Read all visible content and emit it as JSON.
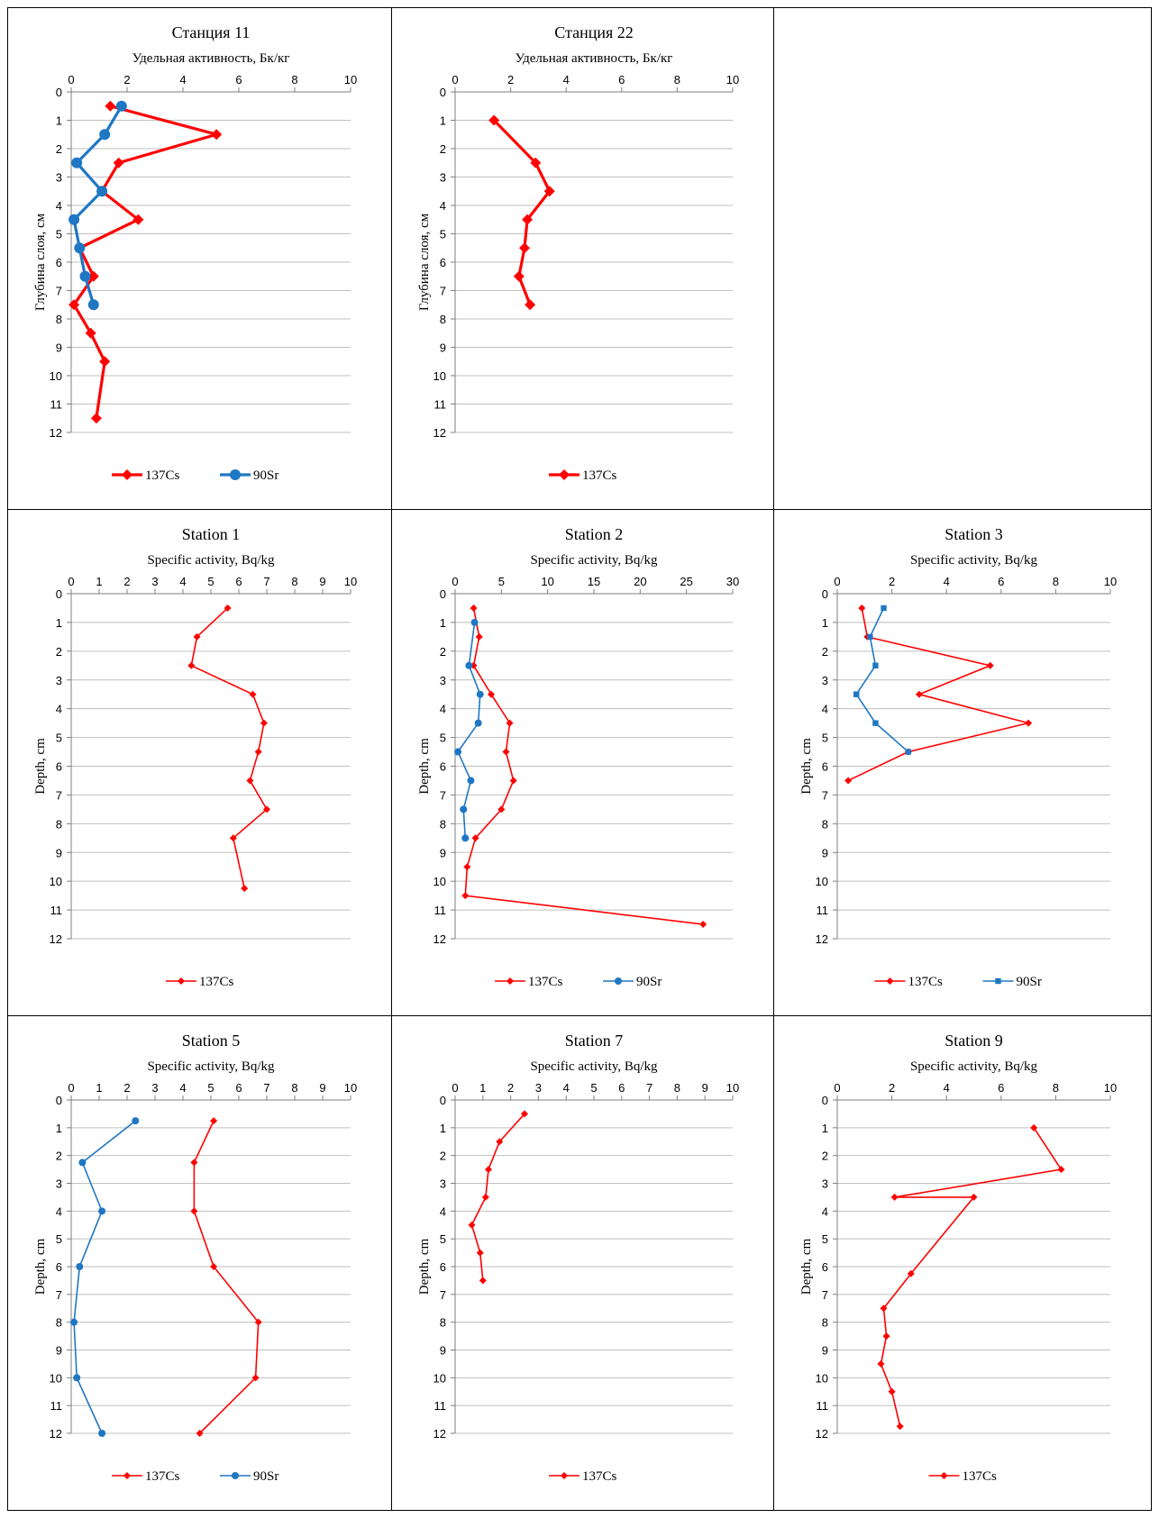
{
  "colors": {
    "cs": "#ff0000",
    "sr": "#1f77c4",
    "grid": "#bfbfbf",
    "axis": "#7f7f7f"
  },
  "chart_data": [
    {
      "type": "line",
      "title": "Станция 11",
      "xlabel": "Удельная активность, Бк/кг",
      "ylabel": "Глубина слоя, см",
      "xlim": [
        0,
        10
      ],
      "xticks": [
        0,
        2,
        4,
        6,
        8,
        10
      ],
      "ylim": [
        0,
        12
      ],
      "yticks": [
        0,
        1,
        2,
        3,
        4,
        5,
        6,
        7,
        8,
        9,
        10,
        11,
        12
      ],
      "y_inverted": true,
      "x_axis_position": "top",
      "grid": "horizontal",
      "legend": "bottom",
      "series": [
        {
          "name": "137Cs",
          "marker": "diamond",
          "style": "bold",
          "color": "#ff0000",
          "points": [
            [
              1.4,
              0.5
            ],
            [
              5.2,
              1.5
            ],
            [
              1.7,
              2.5
            ],
            [
              1.1,
              3.5
            ],
            [
              2.4,
              4.5
            ],
            [
              0.3,
              5.5
            ],
            [
              0.8,
              6.5
            ],
            [
              0.1,
              7.5
            ],
            [
              0.7,
              8.5
            ],
            [
              1.2,
              9.5
            ],
            [
              0.9,
              11.5
            ]
          ]
        },
        {
          "name": "90Sr",
          "marker": "circle",
          "style": "bold",
          "color": "#1f77c4",
          "points": [
            [
              1.8,
              0.5
            ],
            [
              1.2,
              1.5
            ],
            [
              0.2,
              2.5
            ],
            [
              1.1,
              3.5
            ],
            [
              0.1,
              4.5
            ],
            [
              0.3,
              5.5
            ],
            [
              0.5,
              6.5
            ],
            [
              0.8,
              7.5
            ]
          ]
        }
      ]
    },
    {
      "type": "line",
      "title": "Станция 22",
      "xlabel": "Удельная активность, Бк/кг",
      "ylabel": "Глубина слоя, см",
      "xlim": [
        0,
        10
      ],
      "xticks": [
        0,
        2,
        4,
        6,
        8,
        10
      ],
      "ylim": [
        0,
        12
      ],
      "yticks": [
        0,
        1,
        2,
        3,
        4,
        5,
        6,
        7,
        8,
        9,
        10,
        11,
        12
      ],
      "y_inverted": true,
      "x_axis_position": "top",
      "grid": "horizontal",
      "legend": "bottom",
      "series": [
        {
          "name": "137Cs",
          "marker": "diamond",
          "style": "bold",
          "color": "#ff0000",
          "points": [
            [
              1.4,
              1.0
            ],
            [
              2.9,
              2.5
            ],
            [
              3.4,
              3.5
            ],
            [
              2.6,
              4.5
            ],
            [
              2.5,
              5.5
            ],
            [
              2.3,
              6.5
            ],
            [
              2.7,
              7.5
            ]
          ]
        }
      ]
    },
    {
      "type": "line",
      "title": "Station 1",
      "xlabel": "Specific activity, Bq/kg",
      "ylabel": "Depth, cm",
      "xlim": [
        0,
        10
      ],
      "xticks": [
        0,
        1,
        2,
        3,
        4,
        5,
        6,
        7,
        8,
        9,
        10
      ],
      "ylim": [
        0,
        12
      ],
      "yticks": [
        0,
        1,
        2,
        3,
        4,
        5,
        6,
        7,
        8,
        9,
        10,
        11,
        12
      ],
      "y_inverted": true,
      "x_axis_position": "top",
      "grid": "horizontal",
      "legend": "bottom",
      "series": [
        {
          "name": "137Cs",
          "marker": "diamond",
          "style": "thin",
          "color": "#ff0000",
          "points": [
            [
              5.6,
              0.5
            ],
            [
              4.5,
              1.5
            ],
            [
              4.3,
              2.5
            ],
            [
              6.5,
              3.5
            ],
            [
              6.9,
              4.5
            ],
            [
              6.7,
              5.5
            ],
            [
              6.4,
              6.5
            ],
            [
              7.0,
              7.5
            ],
            [
              5.8,
              8.5
            ],
            [
              6.2,
              10.25
            ]
          ]
        }
      ]
    },
    {
      "type": "line",
      "title": "Station 2",
      "xlabel": "Specific activity, Bq/kg",
      "ylabel": "Depth, cm",
      "xlim": [
        0,
        30
      ],
      "xticks": [
        0,
        5,
        10,
        15,
        20,
        25,
        30
      ],
      "ylim": [
        0,
        12
      ],
      "yticks": [
        0,
        1,
        2,
        3,
        4,
        5,
        6,
        7,
        8,
        9,
        10,
        11,
        12
      ],
      "y_inverted": true,
      "x_axis_position": "top",
      "grid": "horizontal",
      "legend": "bottom",
      "series": [
        {
          "name": "137Cs",
          "marker": "diamond",
          "style": "thin",
          "color": "#ff0000",
          "points": [
            [
              2.0,
              0.5
            ],
            [
              2.6,
              1.5
            ],
            [
              2.0,
              2.5
            ],
            [
              3.9,
              3.5
            ],
            [
              5.9,
              4.5
            ],
            [
              5.5,
              5.5
            ],
            [
              6.3,
              6.5
            ],
            [
              5.0,
              7.5
            ],
            [
              2.2,
              8.5
            ],
            [
              1.3,
              9.5
            ],
            [
              1.1,
              10.5
            ],
            [
              26.8,
              11.5
            ]
          ]
        },
        {
          "name": "90Sr",
          "marker": "circle",
          "style": "thin",
          "color": "#1f77c4",
          "points": [
            [
              2.1,
              1.0
            ],
            [
              1.5,
              2.5
            ],
            [
              2.7,
              3.5
            ],
            [
              2.5,
              4.5
            ],
            [
              0.3,
              5.5
            ],
            [
              1.7,
              6.5
            ],
            [
              0.9,
              7.5
            ],
            [
              1.1,
              8.5
            ]
          ]
        }
      ]
    },
    {
      "type": "line",
      "title": "Station 3",
      "xlabel": "Specific activity, Bq/kg",
      "ylabel": "Depth, cm",
      "xlim": [
        0,
        10
      ],
      "xticks": [
        0,
        2,
        4,
        6,
        8,
        10
      ],
      "ylim": [
        0,
        12
      ],
      "yticks": [
        0,
        1,
        2,
        3,
        4,
        5,
        6,
        7,
        8,
        9,
        10,
        11,
        12
      ],
      "y_inverted": true,
      "x_axis_position": "top",
      "grid": "horizontal",
      "legend": "bottom",
      "series": [
        {
          "name": "137Cs",
          "marker": "diamond",
          "style": "thin",
          "color": "#ff0000",
          "points": [
            [
              0.9,
              0.5
            ],
            [
              1.1,
              1.5
            ],
            [
              5.6,
              2.5
            ],
            [
              3.0,
              3.5
            ],
            [
              7.0,
              4.5
            ],
            [
              2.6,
              5.5
            ],
            [
              0.4,
              6.5
            ]
          ]
        },
        {
          "name": "90Sr",
          "marker": "square",
          "style": "thin",
          "color": "#1f77c4",
          "points": [
            [
              1.7,
              0.5
            ],
            [
              1.2,
              1.5
            ],
            [
              1.4,
              2.5
            ],
            [
              0.7,
              3.5
            ],
            [
              1.4,
              4.5
            ],
            [
              2.6,
              5.5
            ]
          ]
        }
      ]
    },
    {
      "type": "line",
      "title": "Station 5",
      "xlabel": "Specific activity, Bq/kg",
      "ylabel": "Depth, cm",
      "xlim": [
        0,
        10
      ],
      "xticks": [
        0,
        1,
        2,
        3,
        4,
        5,
        6,
        7,
        8,
        9,
        10
      ],
      "ylim": [
        0,
        12
      ],
      "yticks": [
        0,
        1,
        2,
        3,
        4,
        5,
        6,
        7,
        8,
        9,
        10,
        11,
        12
      ],
      "y_inverted": true,
      "x_axis_position": "top",
      "grid": "horizontal",
      "legend": "bottom",
      "series": [
        {
          "name": "137Cs",
          "marker": "diamond",
          "style": "thin",
          "color": "#ff0000",
          "points": [
            [
              5.1,
              0.75
            ],
            [
              4.4,
              2.25
            ],
            [
              4.4,
              4.0
            ],
            [
              5.1,
              6.0
            ],
            [
              6.7,
              8.0
            ],
            [
              6.6,
              10.0
            ],
            [
              4.6,
              12.0
            ]
          ]
        },
        {
          "name": "90Sr",
          "marker": "circle",
          "style": "thin",
          "color": "#1f77c4",
          "points": [
            [
              2.3,
              0.75
            ],
            [
              0.4,
              2.25
            ],
            [
              1.1,
              4.0
            ],
            [
              0.3,
              6.0
            ],
            [
              0.1,
              8.0
            ],
            [
              0.2,
              10.0
            ],
            [
              1.1,
              12.0
            ]
          ]
        }
      ]
    },
    {
      "type": "line",
      "title": "Station 7",
      "xlabel": "Specific activity, Bq/kg",
      "ylabel": "Depth, cm",
      "xlim": [
        0,
        10
      ],
      "xticks": [
        0,
        1,
        2,
        3,
        4,
        5,
        6,
        7,
        8,
        9,
        10
      ],
      "ylim": [
        0,
        12
      ],
      "yticks": [
        0,
        1,
        2,
        3,
        4,
        5,
        6,
        7,
        8,
        9,
        10,
        11,
        12
      ],
      "y_inverted": true,
      "x_axis_position": "top",
      "grid": "horizontal",
      "legend": "bottom",
      "series": [
        {
          "name": "137Cs",
          "marker": "diamond",
          "style": "thin",
          "color": "#ff0000",
          "points": [
            [
              2.5,
              0.5
            ],
            [
              1.6,
              1.5
            ],
            [
              1.2,
              2.5
            ],
            [
              1.1,
              3.5
            ],
            [
              0.6,
              4.5
            ],
            [
              0.9,
              5.5
            ],
            [
              1.0,
              6.5
            ]
          ]
        }
      ]
    },
    {
      "type": "line",
      "title": "Station 9",
      "xlabel": "Specific activity, Bq/kg",
      "ylabel": "Depth, cm",
      "xlim": [
        0,
        10
      ],
      "xticks": [
        0,
        2,
        4,
        6,
        8,
        10
      ],
      "ylim": [
        0,
        12
      ],
      "yticks": [
        0,
        1,
        2,
        3,
        4,
        5,
        6,
        7,
        8,
        9,
        10,
        11,
        12
      ],
      "y_inverted": true,
      "x_axis_position": "top",
      "grid": "horizontal",
      "legend": "bottom",
      "series": [
        {
          "name": "137Cs",
          "marker": "diamond",
          "style": "thin",
          "color": "#ff0000",
          "points": [
            [
              7.2,
              1.0
            ],
            [
              8.2,
              2.5
            ],
            [
              2.1,
              3.5
            ],
            [
              5.0,
              3.5
            ],
            [
              2.7,
              6.25
            ],
            [
              1.7,
              7.5
            ],
            [
              1.8,
              8.5
            ],
            [
              1.6,
              9.5
            ],
            [
              2.0,
              10.5
            ],
            [
              2.3,
              11.75
            ]
          ]
        }
      ]
    }
  ]
}
